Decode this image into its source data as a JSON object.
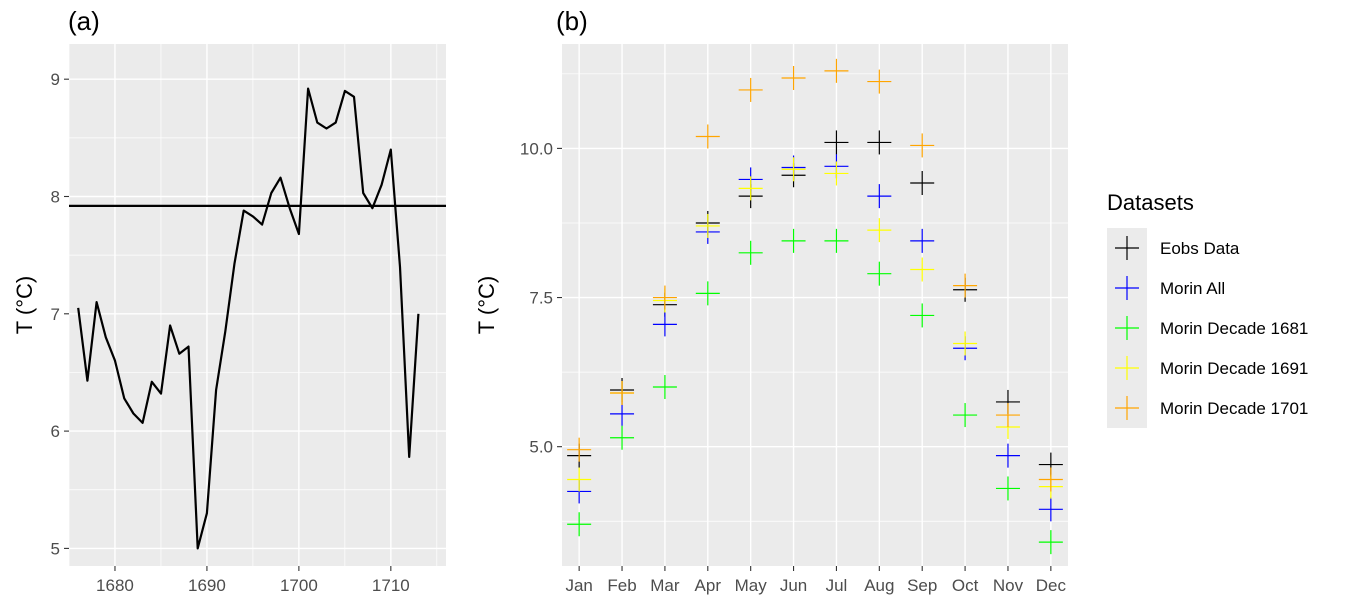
{
  "chart_data": [
    {
      "type": "line",
      "panel_label": "(a)",
      "ylabel": "T (°C)",
      "xlabel": "",
      "xlim": [
        1675,
        1716
      ],
      "ylim": [
        4.85,
        9.3
      ],
      "x_ticks": [
        1680,
        1690,
        1700,
        1710
      ],
      "y_ticks": [
        5,
        6,
        7,
        8,
        9
      ],
      "grid": true,
      "color": "#000000",
      "x": [
        1676,
        1677,
        1678,
        1679,
        1680,
        1681,
        1682,
        1683,
        1684,
        1685,
        1686,
        1687,
        1688,
        1689,
        1690,
        1691,
        1692,
        1693,
        1694,
        1695,
        1696,
        1697,
        1698,
        1699,
        1700,
        1701,
        1702,
        1703,
        1704,
        1705,
        1706,
        1707,
        1708,
        1709,
        1710,
        1711,
        1712,
        1713
      ],
      "y": [
        7.05,
        6.43,
        7.1,
        6.8,
        6.6,
        6.28,
        6.15,
        6.07,
        6.42,
        6.32,
        6.9,
        6.66,
        6.72,
        5.0,
        5.3,
        6.35,
        6.85,
        7.43,
        7.88,
        7.83,
        7.76,
        8.03,
        8.16,
        7.9,
        7.68,
        8.92,
        8.63,
        8.58,
        8.63,
        8.9,
        8.85,
        8.03,
        7.9,
        8.1,
        8.4,
        7.4,
        5.78,
        7.0
      ],
      "hline": 7.92
    },
    {
      "type": "scatter",
      "panel_label": "(b)",
      "ylabel": "T (°C)",
      "xlabel": "",
      "categories": [
        "Jan",
        "Feb",
        "Mar",
        "Apr",
        "May",
        "Jun",
        "Jul",
        "Aug",
        "Sep",
        "Oct",
        "Nov",
        "Dec"
      ],
      "ylim": [
        3.0,
        11.75
      ],
      "y_ticks": [
        5.0,
        7.5,
        10.0
      ],
      "y_tick_labels": [
        "5.0",
        "7.5",
        "10.0"
      ],
      "grid": true,
      "marker": "plus",
      "legend_title": "Datasets",
      "legend_position": "right",
      "series": [
        {
          "name": "Eobs Data",
          "color": "#000000",
          "values": [
            4.85,
            5.95,
            7.38,
            8.75,
            9.2,
            9.55,
            10.1,
            10.1,
            9.42,
            7.63,
            5.75,
            4.7
          ]
        },
        {
          "name": "Morin All",
          "color": "#0000ff",
          "values": [
            4.25,
            5.55,
            7.05,
            8.6,
            9.48,
            9.68,
            9.7,
            9.2,
            8.45,
            6.65,
            4.85,
            3.95
          ]
        },
        {
          "name": "Morin Decade 1681",
          "color": "#00ff00",
          "values": [
            3.7,
            5.15,
            6.0,
            7.57,
            8.25,
            8.45,
            8.45,
            7.9,
            7.2,
            5.53,
            4.3,
            3.4
          ]
        },
        {
          "name": "Morin Decade 1691",
          "color": "#ffff00",
          "values": [
            4.45,
            5.9,
            7.45,
            8.7,
            9.33,
            9.65,
            9.58,
            8.63,
            7.97,
            6.73,
            5.33,
            4.33
          ]
        },
        {
          "name": "Morin Decade 1701",
          "color": "#ffa500",
          "values": [
            4.95,
            5.9,
            7.5,
            10.2,
            10.98,
            11.18,
            11.3,
            11.12,
            10.05,
            7.7,
            5.53,
            4.45
          ]
        }
      ]
    }
  ]
}
